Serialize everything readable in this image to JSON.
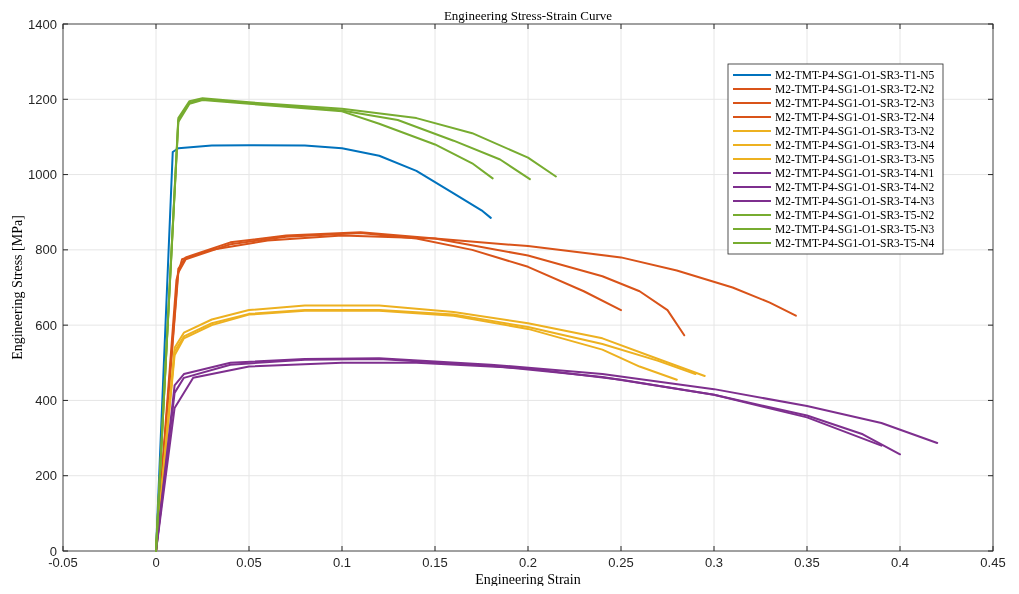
{
  "chart_data": {
    "type": "line",
    "title": "Engineering Stress-Strain Curve",
    "xlabel": "Engineering Strain",
    "ylabel": "Engineering Stress [MPa]",
    "xlim": [
      -0.05,
      0.45
    ],
    "xticks": [
      -0.05,
      0,
      0.05,
      0.1,
      0.15,
      0.2,
      0.25,
      0.3,
      0.35,
      0.4,
      0.45
    ],
    "ylim": [
      0,
      1400
    ],
    "yticks": [
      0,
      200,
      400,
      600,
      800,
      1000,
      1200,
      1400
    ],
    "grid": true,
    "legend": "top right",
    "series": [
      {
        "name": "M2-TMT-P4-SG1-O1-SR3-T1-N5",
        "color": "#0072bd",
        "x": [
          0,
          0.009,
          0.012,
          0.03,
          0.05,
          0.08,
          0.1,
          0.12,
          0.14,
          0.16,
          0.175,
          0.18
        ],
        "values": [
          0,
          1060,
          1070,
          1077,
          1078,
          1077,
          1070,
          1050,
          1010,
          950,
          905,
          885
        ]
      },
      {
        "name": "M2-TMT-P4-SG1-O1-SR3-T2-N2",
        "color": "#d95319",
        "x": [
          0,
          0.011,
          0.014,
          0.03,
          0.06,
          0.1,
          0.15,
          0.2,
          0.25,
          0.28,
          0.31,
          0.33,
          0.344
        ],
        "values": [
          0,
          720,
          775,
          800,
          825,
          838,
          830,
          810,
          780,
          745,
          700,
          660,
          625
        ]
      },
      {
        "name": "M2-TMT-P4-SG1-O1-SR3-T2-N3",
        "color": "#d95319",
        "x": [
          0,
          0.012,
          0.016,
          0.04,
          0.07,
          0.11,
          0.15,
          0.2,
          0.24,
          0.26,
          0.275,
          0.284
        ],
        "values": [
          0,
          750,
          780,
          820,
          838,
          847,
          830,
          785,
          730,
          690,
          640,
          573
        ]
      },
      {
        "name": "M2-TMT-P4-SG1-O1-SR3-T2-N4",
        "color": "#d95319",
        "x": [
          0,
          0.012,
          0.016,
          0.04,
          0.07,
          0.11,
          0.14,
          0.17,
          0.2,
          0.23,
          0.25
        ],
        "values": [
          0,
          740,
          775,
          815,
          835,
          845,
          830,
          800,
          755,
          690,
          640
        ]
      },
      {
        "name": "M2-TMT-P4-SG1-O1-SR3-T3-N2",
        "color": "#edb120",
        "x": [
          0,
          0.01,
          0.015,
          0.03,
          0.05,
          0.08,
          0.12,
          0.16,
          0.2,
          0.24,
          0.27,
          0.295
        ],
        "values": [
          0,
          540,
          580,
          615,
          640,
          652,
          652,
          635,
          605,
          565,
          510,
          465
        ]
      },
      {
        "name": "M2-TMT-P4-SG1-O1-SR3-T3-N4",
        "color": "#edb120",
        "x": [
          0,
          0.01,
          0.015,
          0.03,
          0.05,
          0.08,
          0.12,
          0.16,
          0.2,
          0.24,
          0.27,
          0.29
        ],
        "values": [
          0,
          530,
          570,
          605,
          630,
          640,
          640,
          628,
          595,
          550,
          505,
          470
        ]
      },
      {
        "name": "M2-TMT-P4-SG1-O1-SR3-T3-N5",
        "color": "#edb120",
        "x": [
          0,
          0.01,
          0.015,
          0.03,
          0.05,
          0.08,
          0.12,
          0.16,
          0.2,
          0.24,
          0.26,
          0.28
        ],
        "values": [
          0,
          520,
          565,
          600,
          628,
          638,
          638,
          625,
          590,
          535,
          490,
          455
        ]
      },
      {
        "name": "M2-TMT-P4-SG1-O1-SR3-T4-N1",
        "color": "#7e2f8e",
        "x": [
          0,
          0.01,
          0.015,
          0.04,
          0.08,
          0.12,
          0.18,
          0.24,
          0.3,
          0.35,
          0.39,
          0.42
        ],
        "values": [
          0,
          440,
          470,
          500,
          510,
          512,
          495,
          470,
          430,
          385,
          340,
          287
        ]
      },
      {
        "name": "M2-TMT-P4-SG1-O1-SR3-T4-N2",
        "color": "#7e2f8e",
        "x": [
          0,
          0.01,
          0.015,
          0.04,
          0.08,
          0.12,
          0.18,
          0.24,
          0.3,
          0.35,
          0.38,
          0.4
        ],
        "values": [
          0,
          420,
          460,
          495,
          508,
          510,
          492,
          462,
          415,
          360,
          310,
          257
        ]
      },
      {
        "name": "M2-TMT-P4-SG1-O1-SR3-T4-N3",
        "color": "#7e2f8e",
        "x": [
          0,
          0.01,
          0.02,
          0.05,
          0.1,
          0.14,
          0.2,
          0.25,
          0.3,
          0.35,
          0.39
        ],
        "values": [
          0,
          380,
          460,
          490,
          500,
          500,
          485,
          455,
          415,
          355,
          280
        ]
      },
      {
        "name": "M2-TMT-P4-SG1-O1-SR3-T5-N2",
        "color": "#77ac30",
        "x": [
          0,
          0.012,
          0.018,
          0.025,
          0.05,
          0.1,
          0.14,
          0.17,
          0.2,
          0.215
        ],
        "values": [
          0,
          1150,
          1195,
          1203,
          1192,
          1175,
          1150,
          1110,
          1045,
          995
        ]
      },
      {
        "name": "M2-TMT-P4-SG1-O1-SR3-T5-N3",
        "color": "#77ac30",
        "x": [
          0,
          0.012,
          0.018,
          0.025,
          0.05,
          0.1,
          0.13,
          0.16,
          0.185,
          0.201
        ],
        "values": [
          0,
          1145,
          1190,
          1200,
          1190,
          1170,
          1145,
          1090,
          1040,
          988
        ]
      },
      {
        "name": "M2-TMT-P4-SG1-O1-SR3-T5-N4",
        "color": "#77ac30",
        "x": [
          0,
          0.012,
          0.018,
          0.025,
          0.05,
          0.1,
          0.12,
          0.15,
          0.17,
          0.181
        ],
        "values": [
          0,
          1140,
          1188,
          1198,
          1188,
          1168,
          1135,
          1080,
          1030,
          990
        ]
      }
    ]
  }
}
